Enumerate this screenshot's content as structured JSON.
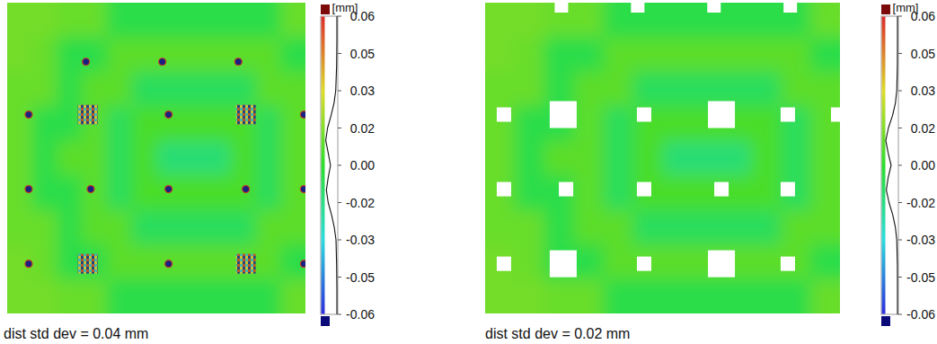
{
  "chart_data": [
    {
      "type": "heatmap",
      "caption": "dist std dev = 0.04 mm",
      "colorbar_label": "[mm]",
      "colorbar_range": [
        -0.06,
        0.06
      ],
      "colorbar_ticks": [
        0.06,
        {
          "value": 0.045,
          "label": "0.05"
        },
        0.03,
        {
          "value": 0.015,
          "label": "0.02"
        },
        {
          "value": 0,
          "label": "0.00"
        },
        {
          "value": -0.015,
          "label": "-0.02"
        },
        -0.03,
        {
          "value": -0.045,
          "label": "-0.05"
        },
        -0.06
      ],
      "cells": [
        [
          0.012,
          0.012,
          0.01,
          0.01,
          -0.005,
          -0.005,
          -0.005,
          -0.005,
          -0.005,
          -0.005,
          -0.005,
          0.01
        ],
        [
          0.012,
          0.01,
          -0.005,
          -0.005,
          0.008,
          0.008,
          0.008,
          0.008,
          0.008,
          0.008,
          0.008,
          -0.005
        ],
        [
          0.01,
          0.01,
          -0.005,
          0.008,
          0.008,
          -0.008,
          -0.008,
          -0.008,
          -0.008,
          -0.008,
          0.008,
          0.008
        ],
        [
          0.01,
          -0.005,
          -0.005,
          0.008,
          -0.008,
          0.005,
          0.005,
          0.005,
          0.005,
          0.005,
          -0.008,
          0.008
        ],
        [
          0.01,
          -0.005,
          0.008,
          0.008,
          -0.008,
          0.005,
          -0.012,
          -0.012,
          -0.012,
          0.005,
          -0.008,
          0.008
        ],
        [
          0.01,
          -0.005,
          -0.005,
          0.008,
          -0.008,
          0.005,
          0.005,
          0.005,
          0.005,
          0.005,
          -0.008,
          0.008
        ],
        [
          0.01,
          0.01,
          -0.005,
          0.008,
          0.008,
          -0.008,
          -0.008,
          -0.008,
          -0.008,
          -0.008,
          0.008,
          0.008
        ],
        [
          0.012,
          0.01,
          -0.005,
          -0.005,
          0.008,
          0.008,
          0.008,
          0.008,
          0.008,
          0.008,
          0.008,
          -0.005
        ],
        [
          0.012,
          0.012,
          0.01,
          0.01,
          -0.005,
          -0.005,
          -0.005,
          -0.005,
          -0.005,
          -0.005,
          -0.005,
          0.01
        ]
      ],
      "distribution": {
        "levels": [
          0.06,
          0.05,
          0.04,
          0.03,
          0.025,
          0.02,
          0.015,
          0.01,
          0.005,
          0,
          -0.005,
          -0.01,
          -0.015,
          -0.02,
          -0.025,
          -0.03,
          -0.04,
          -0.05,
          -0.06
        ],
        "density": [
          0,
          0,
          0.02,
          0.1,
          0.25,
          0.5,
          0.8,
          0.95,
          0.75,
          0.55,
          0.75,
          0.9,
          0.75,
          0.45,
          0.22,
          0.08,
          0.02,
          0,
          0
        ]
      }
    },
    {
      "type": "heatmap",
      "caption": "dist std dev = 0.02 mm",
      "colorbar_label": "[mm]",
      "colorbar_range": [
        -0.06,
        0.06
      ],
      "colorbar_ticks": [
        0.06,
        {
          "value": 0.045,
          "label": "0.05"
        },
        0.03,
        {
          "value": 0.015,
          "label": "0.02"
        },
        {
          "value": 0,
          "label": "0.00"
        },
        {
          "value": -0.015,
          "label": "-0.02"
        },
        -0.03,
        {
          "value": -0.045,
          "label": "-0.05"
        },
        -0.06
      ],
      "cells": [
        [
          0.012,
          0.012,
          0.01,
          0.01,
          -0.005,
          -0.005,
          -0.005,
          -0.005,
          -0.005,
          -0.005,
          -0.005,
          0.01
        ],
        [
          0.012,
          0.01,
          -0.005,
          -0.005,
          0.008,
          0.008,
          0.008,
          0.008,
          0.008,
          0.008,
          0.008,
          -0.005
        ],
        [
          0.01,
          0.01,
          -0.005,
          0.008,
          0.008,
          -0.008,
          -0.008,
          -0.008,
          -0.008,
          -0.008,
          0.008,
          0.008
        ],
        [
          0.01,
          -0.005,
          -0.005,
          0.008,
          -0.008,
          0.005,
          0.005,
          0.005,
          0.005,
          0.005,
          -0.008,
          0.008
        ],
        [
          0.01,
          -0.005,
          0.008,
          0.008,
          -0.008,
          0.005,
          -0.012,
          -0.012,
          -0.012,
          0.005,
          -0.008,
          0.008
        ],
        [
          0.01,
          -0.005,
          -0.005,
          0.008,
          -0.008,
          0.005,
          0.005,
          0.005,
          0.005,
          0.005,
          -0.008,
          0.008
        ],
        [
          0.01,
          0.01,
          -0.005,
          0.008,
          0.008,
          -0.008,
          -0.008,
          -0.008,
          -0.008,
          -0.008,
          0.008,
          0.008
        ],
        [
          0.012,
          0.01,
          -0.005,
          -0.005,
          0.008,
          0.008,
          0.008,
          0.008,
          0.008,
          0.008,
          0.008,
          -0.005
        ],
        [
          0.012,
          0.012,
          0.01,
          0.01,
          -0.005,
          -0.005,
          -0.005,
          -0.005,
          -0.005,
          -0.005,
          -0.005,
          0.01
        ]
      ],
      "distribution": {
        "levels": [
          0.06,
          0.05,
          0.04,
          0.03,
          0.025,
          0.02,
          0.015,
          0.01,
          0.005,
          0,
          -0.005,
          -0.01,
          -0.015,
          -0.02,
          -0.025,
          -0.03,
          -0.04,
          -0.05,
          -0.06
        ],
        "density": [
          0,
          0,
          0.01,
          0.06,
          0.18,
          0.42,
          0.78,
          1.0,
          0.8,
          0.55,
          0.8,
          0.95,
          0.72,
          0.4,
          0.18,
          0.06,
          0.01,
          0,
          0
        ]
      }
    }
  ]
}
